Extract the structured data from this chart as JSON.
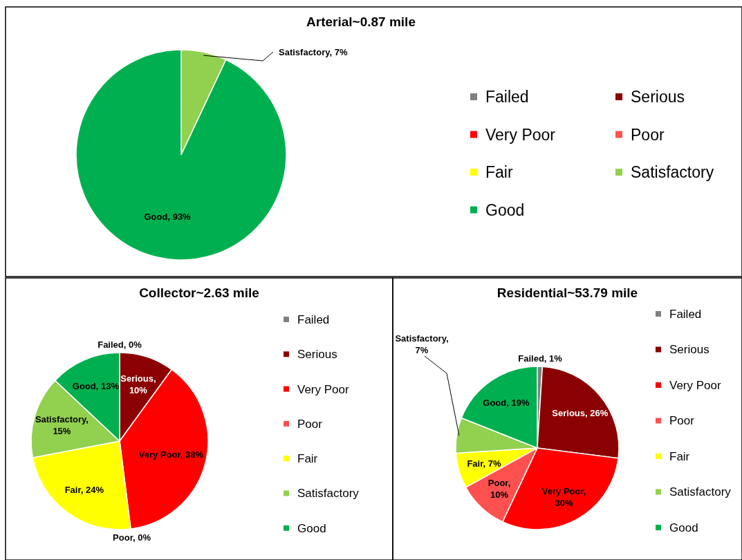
{
  "chart_data": [
    {
      "type": "pie",
      "title": "Arterial~0.87 mile",
      "categories": [
        "Failed",
        "Serious",
        "Very Poor",
        "Poor",
        "Fair",
        "Satisfactory",
        "Good"
      ],
      "values": [
        0,
        0,
        0,
        0,
        0,
        7,
        93
      ],
      "colors": [
        "#808080",
        "#8b0000",
        "#ff0000",
        "#ff5050",
        "#ffff00",
        "#92d050",
        "#00b050"
      ],
      "value_labels": [
        null,
        null,
        null,
        null,
        null,
        "Satisfactory, 7%",
        "Good, 93%"
      ],
      "legend": "right"
    },
    {
      "type": "pie",
      "title": "Collector~2.63 mile",
      "categories": [
        "Failed",
        "Serious",
        "Very Poor",
        "Poor",
        "Fair",
        "Satisfactory",
        "Good"
      ],
      "values": [
        0,
        10,
        38,
        0,
        24,
        15,
        13
      ],
      "colors": [
        "#808080",
        "#8b0000",
        "#ff0000",
        "#ff5050",
        "#ffff00",
        "#92d050",
        "#00b050"
      ],
      "value_labels": [
        "Failed, 0%",
        "Serious, 10%",
        "Very Poor, 38%",
        "Poor, 0%",
        "Fair, 24%",
        "Satisfactory, 15%",
        "Good, 13%"
      ],
      "legend": "right"
    },
    {
      "type": "pie",
      "title": "Residential~53.79 mile",
      "categories": [
        "Failed",
        "Serious",
        "Very Poor",
        "Poor",
        "Fair",
        "Satisfactory",
        "Good"
      ],
      "values": [
        1,
        26,
        30,
        10,
        7,
        7,
        19
      ],
      "colors": [
        "#808080",
        "#8b0000",
        "#ff0000",
        "#ff5050",
        "#ffff00",
        "#92d050",
        "#00b050"
      ],
      "value_labels": [
        "Failed, 1%",
        "Serious, 26%",
        "Very Poor, 30%",
        "Poor, 10%",
        "Fair, 7%",
        "Satisfactory, 7%",
        "Good, 19%"
      ],
      "legend": "right"
    }
  ]
}
